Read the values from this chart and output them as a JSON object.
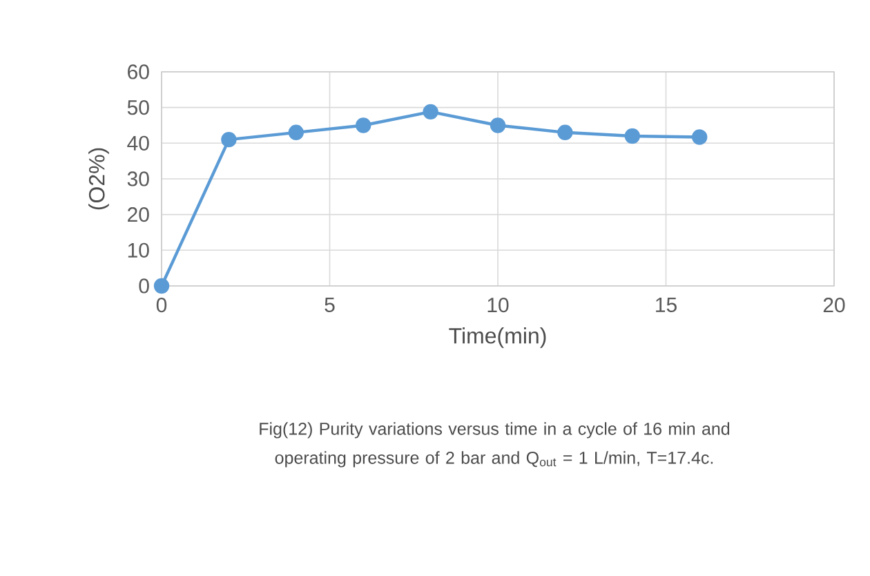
{
  "chart_data": {
    "type": "line",
    "xlabel": "Time(min)",
    "ylabel": "(O2%)",
    "annotations": [
      "Fig(12) Purity variations versus time in a cycle of 16 min and operating pressure of 2 bar and Q$_{out}$ = 1 L/min, T=17.4c."
    ],
    "x": [
      0,
      2,
      4,
      6,
      8,
      10,
      12,
      14,
      16
    ],
    "series": [
      {
        "color": "#5b9bd5",
        "values": [
          0,
          41,
          43,
          45,
          48.8,
          45,
          43,
          42,
          41.7
        ]
      }
    ],
    "xlim": [
      0,
      20
    ],
    "ylim": [
      0,
      60
    ],
    "xticks": [
      0,
      5,
      10,
      15,
      20
    ],
    "yticks": [
      0,
      10,
      20,
      30,
      40,
      50,
      60
    ],
    "grid": true,
    "marker": "circle",
    "line_style": "solid"
  }
}
